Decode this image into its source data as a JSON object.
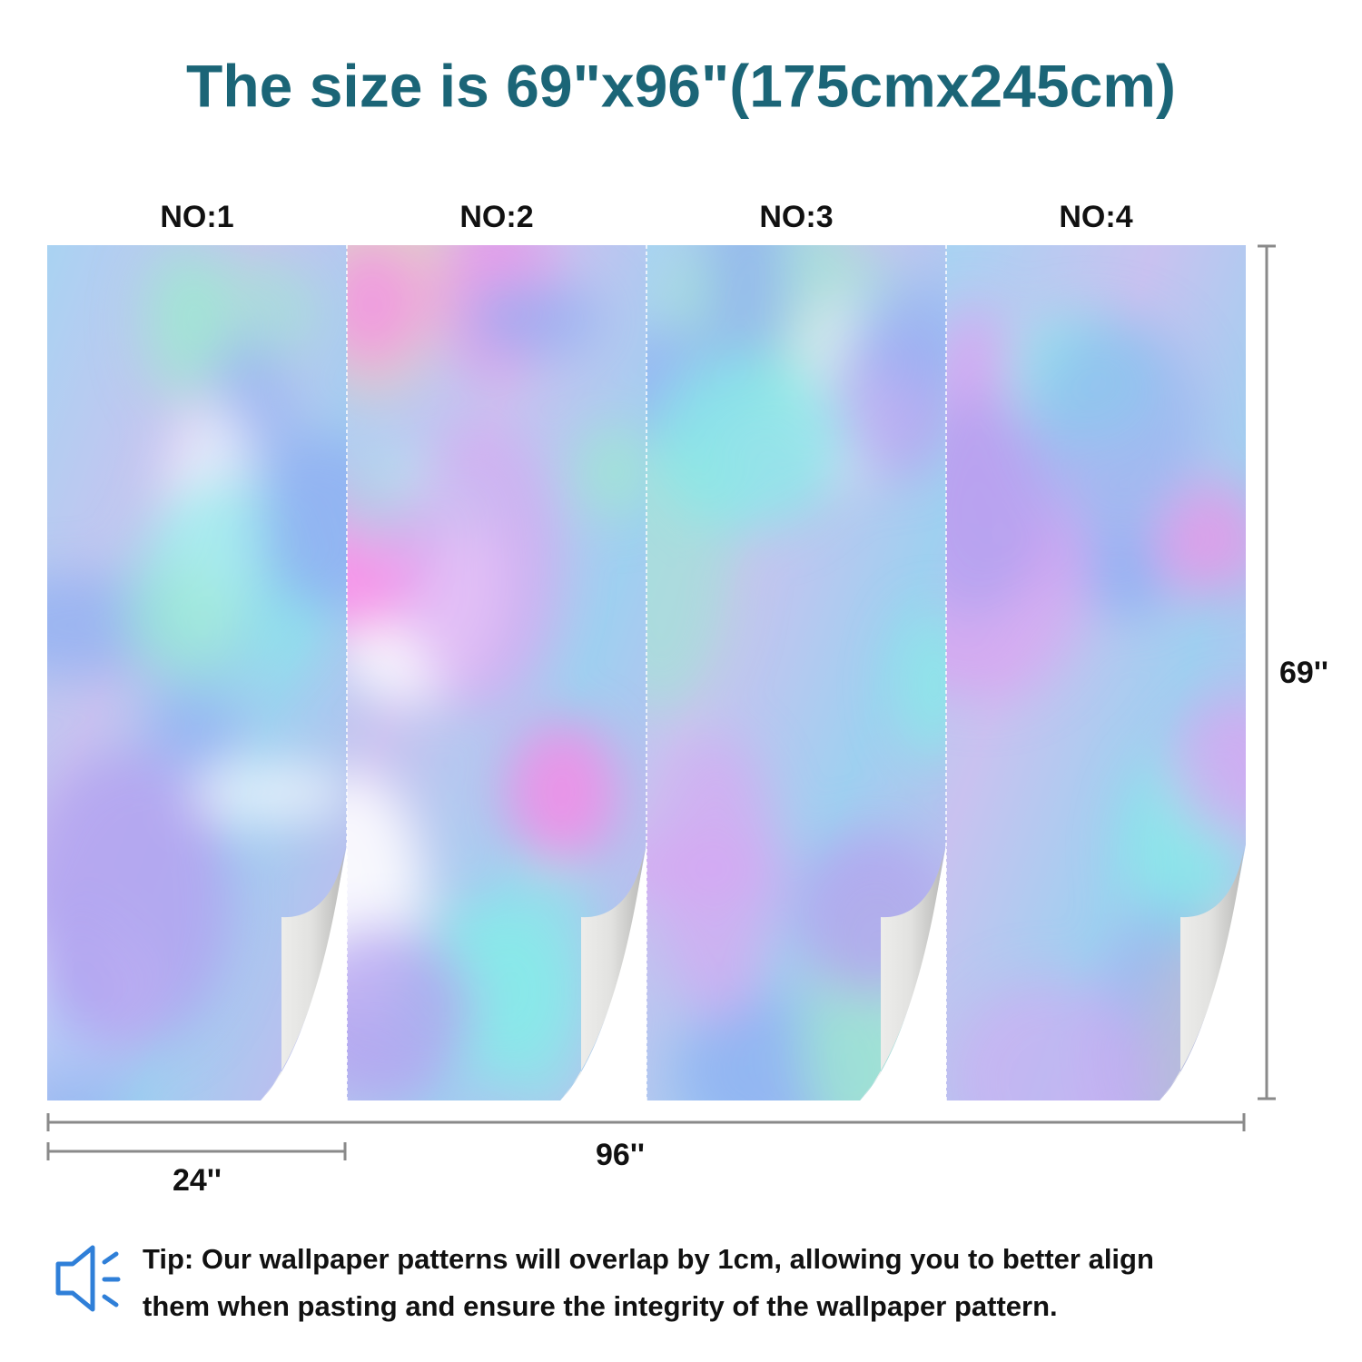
{
  "header": {
    "title": "The size is 69\"x96\"(175cmx245cm)"
  },
  "panels": [
    {
      "label": "NO:1"
    },
    {
      "label": "NO:2"
    },
    {
      "label": "NO:3"
    },
    {
      "label": "NO:4"
    }
  ],
  "dimensions": {
    "height": "69''",
    "total_width": "96''",
    "panel_width": "24''"
  },
  "tip": {
    "lines": [
      "Tip: Our wallpaper patterns will overlap by 1cm, allowing you to better align",
      "them when pasting and ensure the integrity of the wallpaper pattern."
    ]
  }
}
